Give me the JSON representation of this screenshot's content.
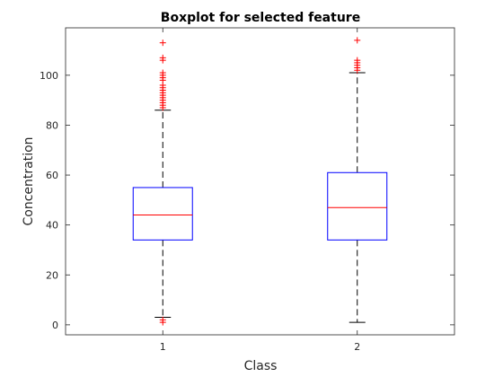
{
  "chart_data": {
    "type": "box",
    "title": "Boxplot for selected feature",
    "xlabel": "Class",
    "ylabel": "Concentration",
    "ylim": [
      -4,
      119
    ],
    "yticks": [
      0,
      20,
      40,
      60,
      80,
      100
    ],
    "categories": [
      "1",
      "2"
    ],
    "grid": false,
    "colors": {
      "box": "#0000ff",
      "median": "#ff0000",
      "outlier": "#ff0000",
      "whisker": "#000000",
      "axis": "#262626"
    },
    "boxes": [
      {
        "category": "1",
        "q1": 34,
        "median": 44,
        "q3": 55,
        "whisker_low": 3,
        "whisker_high": 86,
        "outliers": [
          1,
          2,
          87,
          88,
          89,
          90,
          91,
          92,
          93,
          94,
          95,
          96,
          98,
          99,
          100,
          101,
          106,
          107,
          113
        ]
      },
      {
        "category": "2",
        "q1": 34,
        "median": 47,
        "q3": 61,
        "whisker_low": 1,
        "whisker_high": 101,
        "outliers": [
          102,
          103,
          104,
          105,
          106,
          114
        ]
      }
    ]
  }
}
